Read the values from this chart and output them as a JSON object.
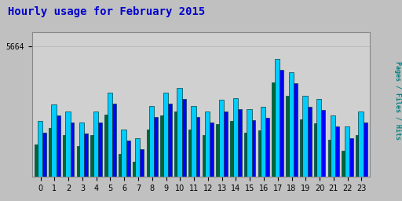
{
  "title": "Hourly usage for February 2015",
  "title_color": "#0000cc",
  "title_fontsize": 10,
  "ylabel_right": "Pages / Files / Hits",
  "ylabel_right_color": "#008080",
  "ytick_label": "5664",
  "background_color": "#c0c0c0",
  "plot_bg_color": "#d0d0d0",
  "hours": [
    0,
    1,
    2,
    3,
    4,
    5,
    6,
    7,
    8,
    9,
    10,
    11,
    12,
    13,
    14,
    15,
    16,
    17,
    18,
    19,
    20,
    21,
    22,
    23
  ],
  "hits_values": [
    5530,
    5560,
    5548,
    5528,
    5548,
    5582,
    5515,
    5500,
    5558,
    5582,
    5590,
    5558,
    5548,
    5568,
    5572,
    5552,
    5556,
    5642,
    5618,
    5576,
    5570,
    5540,
    5520,
    5548
  ],
  "files_values": [
    5510,
    5540,
    5528,
    5508,
    5528,
    5562,
    5495,
    5480,
    5538,
    5562,
    5570,
    5538,
    5528,
    5548,
    5552,
    5532,
    5536,
    5622,
    5598,
    5556,
    5550,
    5520,
    5500,
    5528
  ],
  "pages_values": [
    5488,
    5518,
    5505,
    5485,
    5505,
    5542,
    5472,
    5457,
    5515,
    5540,
    5548,
    5515,
    5505,
    5525,
    5530,
    5510,
    5513,
    5600,
    5575,
    5533,
    5527,
    5497,
    5477,
    5505
  ],
  "hits_color": "#00ccff",
  "files_color": "#0000ff",
  "pages_color": "#006633",
  "bar_edge_color": "#004444",
  "ymin": 5430,
  "ymax": 5690,
  "figwidth": 5.12,
  "figheight": 2.56,
  "dpi": 100
}
